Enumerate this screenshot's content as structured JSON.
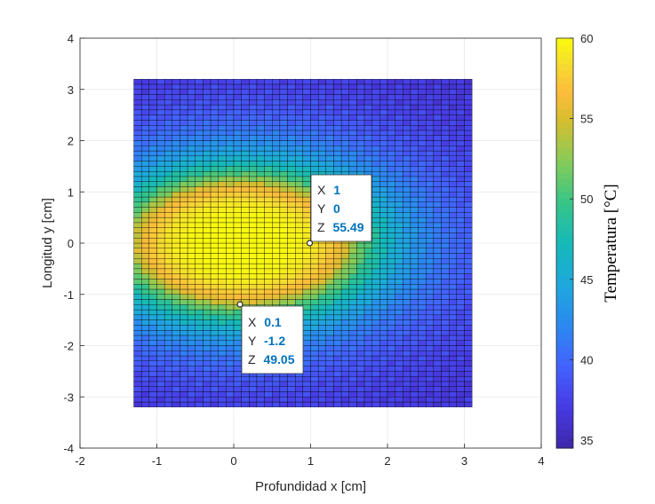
{
  "chart_data": {
    "type": "heatmap",
    "xlabel": "Profundidad x [cm]",
    "ylabel": "Longitud y [cm]",
    "xlim": [
      -2,
      4
    ],
    "ylim": [
      -4,
      4
    ],
    "xticks": [
      "-2",
      "-1",
      "0",
      "1",
      "2",
      "3",
      "4"
    ],
    "yticks": [
      "-4",
      "-3",
      "-2",
      "-1",
      "0",
      "1",
      "2",
      "3",
      "4"
    ],
    "grid": true,
    "surface": {
      "x_range": [
        -1.3,
        3.1
      ],
      "y_range": [
        -3.2,
        3.2
      ],
      "grid_step": 0.1,
      "hotspot_center": [
        0.1,
        0
      ],
      "max_value": 60,
      "min_value": 34.5
    },
    "colorbar": {
      "label": "Temperatura [°C]",
      "min": 34.5,
      "max": 60,
      "ticks": [
        "35",
        "40",
        "45",
        "50",
        "55",
        "60"
      ],
      "colormap": "parula"
    },
    "datatips": [
      {
        "x_label": "X",
        "x": "1",
        "y_label": "Y",
        "y": "0",
        "z_label": "Z",
        "z": "55.49"
      },
      {
        "x_label": "X",
        "x": "0.1",
        "y_label": "Y",
        "y": "-1.2",
        "z_label": "Z",
        "z": "49.05"
      }
    ],
    "value_color": "#0072bd",
    "edge_color": "#000000"
  }
}
